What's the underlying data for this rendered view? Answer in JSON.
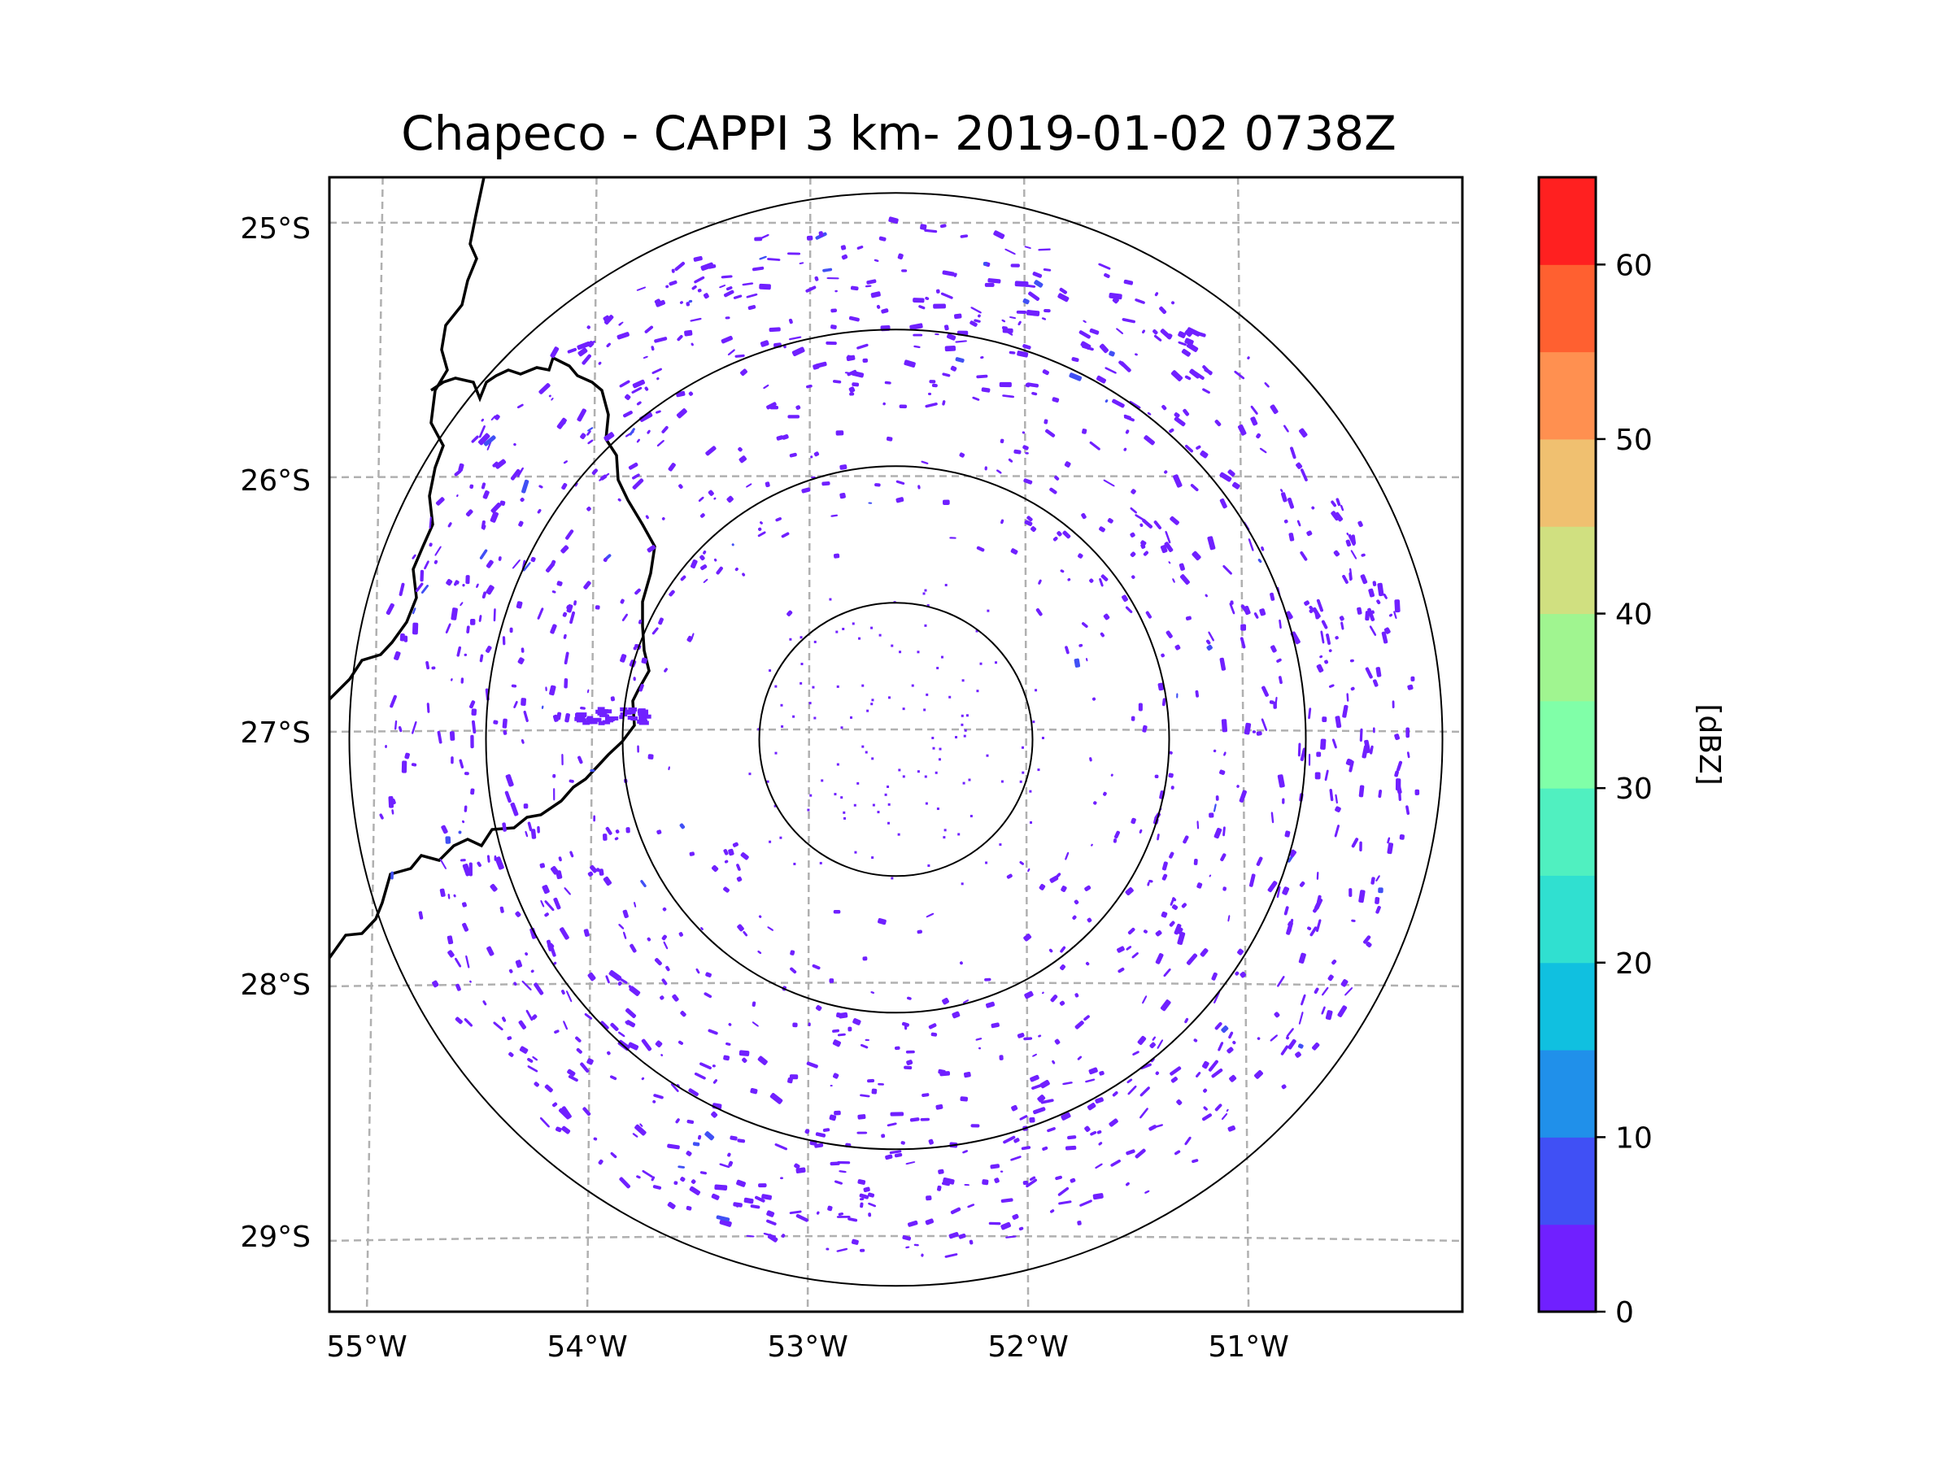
{
  "chart_data": {
    "type": "radar-map",
    "title": "Chapeco - CAPPI 3 km- 2019-01-02 0738Z",
    "xlabel": "",
    "ylabel": "",
    "lon_ticks": [
      "55°W",
      "54°W",
      "53°W",
      "52°W",
      "51°W"
    ],
    "lat_ticks": [
      "25°S",
      "26°S",
      "27°S",
      "28°S",
      "29°S"
    ],
    "lon_values": [
      -55,
      -54,
      -53,
      -52,
      -51
    ],
    "lat_values": [
      -25,
      -26,
      -27,
      -28,
      -29
    ],
    "xlim": [
      -55.17,
      -50.03
    ],
    "ylim": [
      -29.3,
      -24.8
    ],
    "grid": true,
    "radar_center": {
      "lon": -52.6,
      "lat": -27.03
    },
    "range_rings_km": [
      50,
      100,
      150,
      200
    ],
    "dominant_reflectivity_dbz": "0-5",
    "colorbar": {
      "label": "[dBZ]",
      "ticks": [
        "0",
        "10",
        "20",
        "30",
        "40",
        "50",
        "60"
      ],
      "tick_values": [
        0,
        10,
        20,
        30,
        40,
        50,
        60
      ],
      "range": [
        0,
        65
      ],
      "bins": [
        {
          "from": 0,
          "to": 5,
          "color": "#7020ff"
        },
        {
          "from": 5,
          "to": 10,
          "color": "#4050f5"
        },
        {
          "from": 10,
          "to": 15,
          "color": "#2090ea"
        },
        {
          "from": 15,
          "to": 20,
          "color": "#10c0e0"
        },
        {
          "from": 20,
          "to": 25,
          "color": "#30e0d0"
        },
        {
          "from": 25,
          "to": 30,
          "color": "#50f0c0"
        },
        {
          "from": 30,
          "to": 35,
          "color": "#80ffa8"
        },
        {
          "from": 35,
          "to": 40,
          "color": "#a0f590"
        },
        {
          "from": 40,
          "to": 45,
          "color": "#d0e080"
        },
        {
          "from": 45,
          "to": 50,
          "color": "#f0c070"
        },
        {
          "from": 50,
          "to": 55,
          "color": "#ff9050"
        },
        {
          "from": 55,
          "to": 60,
          "color": "#ff6030"
        },
        {
          "from": 60,
          "to": 65,
          "color": "#ff2020"
        }
      ]
    }
  }
}
